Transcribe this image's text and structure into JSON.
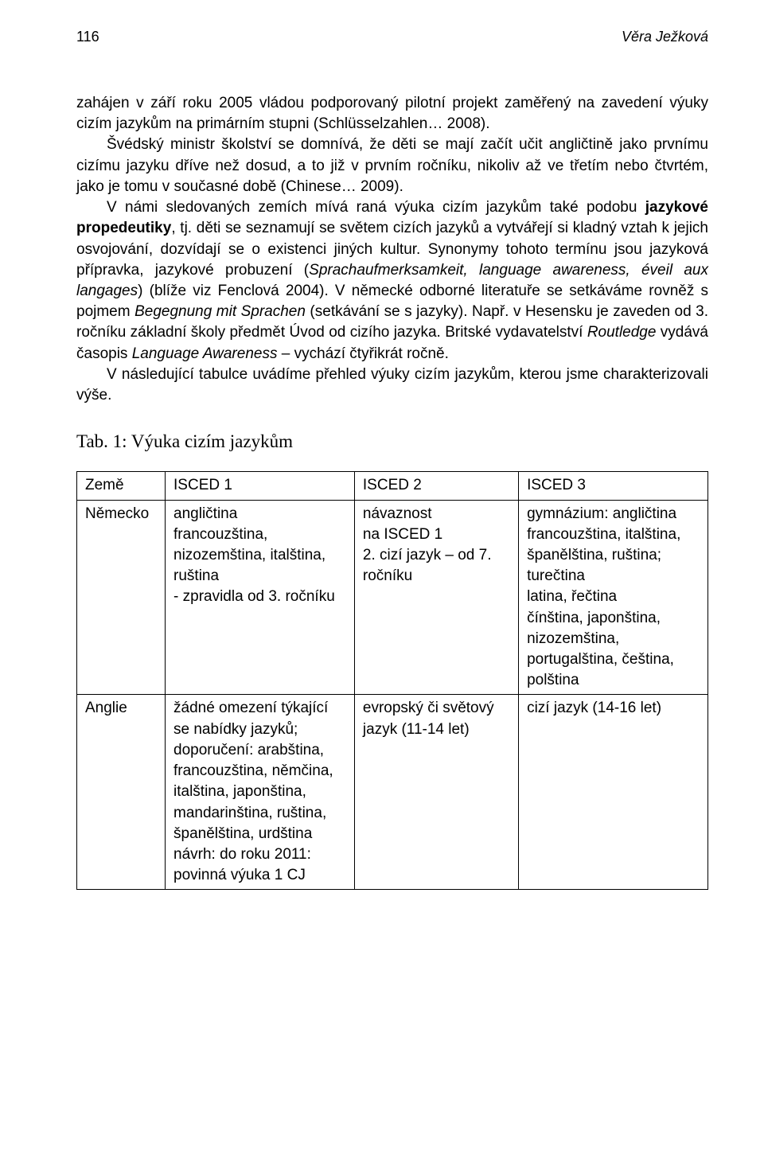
{
  "page": {
    "number": "116",
    "author": "Věra Ježková"
  },
  "text": {
    "p1a": "zahájen v září roku 2005 vládou podporovaný pilotní projekt zaměřený na zavedení výuky cizím jazykům na primárním stupni (Schlüsselzahlen… 2008).",
    "p2a": "Švédský ministr školství se domnívá, že děti se mají začít učit angličtině jako prvnímu cizímu jazyku dříve než dosud, a to již v prvním ročníku, nikoliv až ve třetím nebo čtvrtém, jako je tomu v současné době (Chinese… 2009).",
    "p3a": "V námi sledovaných zemích mívá raná výuka cizím jazykům také podobu ",
    "p3b": "jazykové propedeutiky",
    "p3c": ", tj. děti se seznamují se světem cizích jazyků a vytvářejí si kladný vztah k jejich osvojování, dozvídají se o existenci jiných kultur. Synonymy tohoto termínu jsou jazyková přípravka, jazykové probuzení (",
    "p3d": "Sprachaufmerksamkeit, language awareness, éveil aux langages",
    "p3e": ") (blíže viz Fenclová 2004). V německé odborné literatuře se setkáváme rovněž s pojmem ",
    "p3f": "Begegnung mit Sprachen",
    "p3g": " (setkávání se s jazyky). Např. v Hesensku je zaveden od 3. ročníku základní školy předmět Úvod od cizího jazyka. Britské vydavatelství ",
    "p3h": "Routledge",
    "p3i": " vydává časopis ",
    "p3j": "Language Awareness",
    "p3k": " – vychází čtyřikrát ročně.",
    "p4": "V následující tabulce uvádíme přehled výuky cizím jazykům, kterou jsme charakterizovali výše."
  },
  "table": {
    "caption": "Tab. 1: Výuka cizím jazykům",
    "headers": {
      "col1": "Země",
      "col2": "ISCED 1",
      "col3": "ISCED 2",
      "col4": "ISCED 3"
    },
    "rows": [
      {
        "country": "Německo",
        "isced1": "angličtina\nfrancouzština, nizozemština, italština, ruština\n- zpravidla od 3. ročníku",
        "isced2": "návaznost\nna ISCED 1\n2. cizí jazyk – od 7. ročníku",
        "isced3": "gymnázium: angličtina\nfrancouzština, italština, španělština, ruština; turečtina\nlatina, řečtina\nčínština, japonština, nizozemština, portugalština, čeština, polština"
      },
      {
        "country": "Anglie",
        "isced1": "žádné omezení týkající se nabídky jazyků;\ndoporučení: arabština, francouzština, němčina, italština, japonština, mandarinština, ruština, španělština, urdština\nnávrh: do roku 2011: povinná výuka 1 CJ",
        "isced2": "evropský či světový jazyk (11-14 let)",
        "isced3": "cizí jazyk (14-16 let)"
      }
    ]
  }
}
